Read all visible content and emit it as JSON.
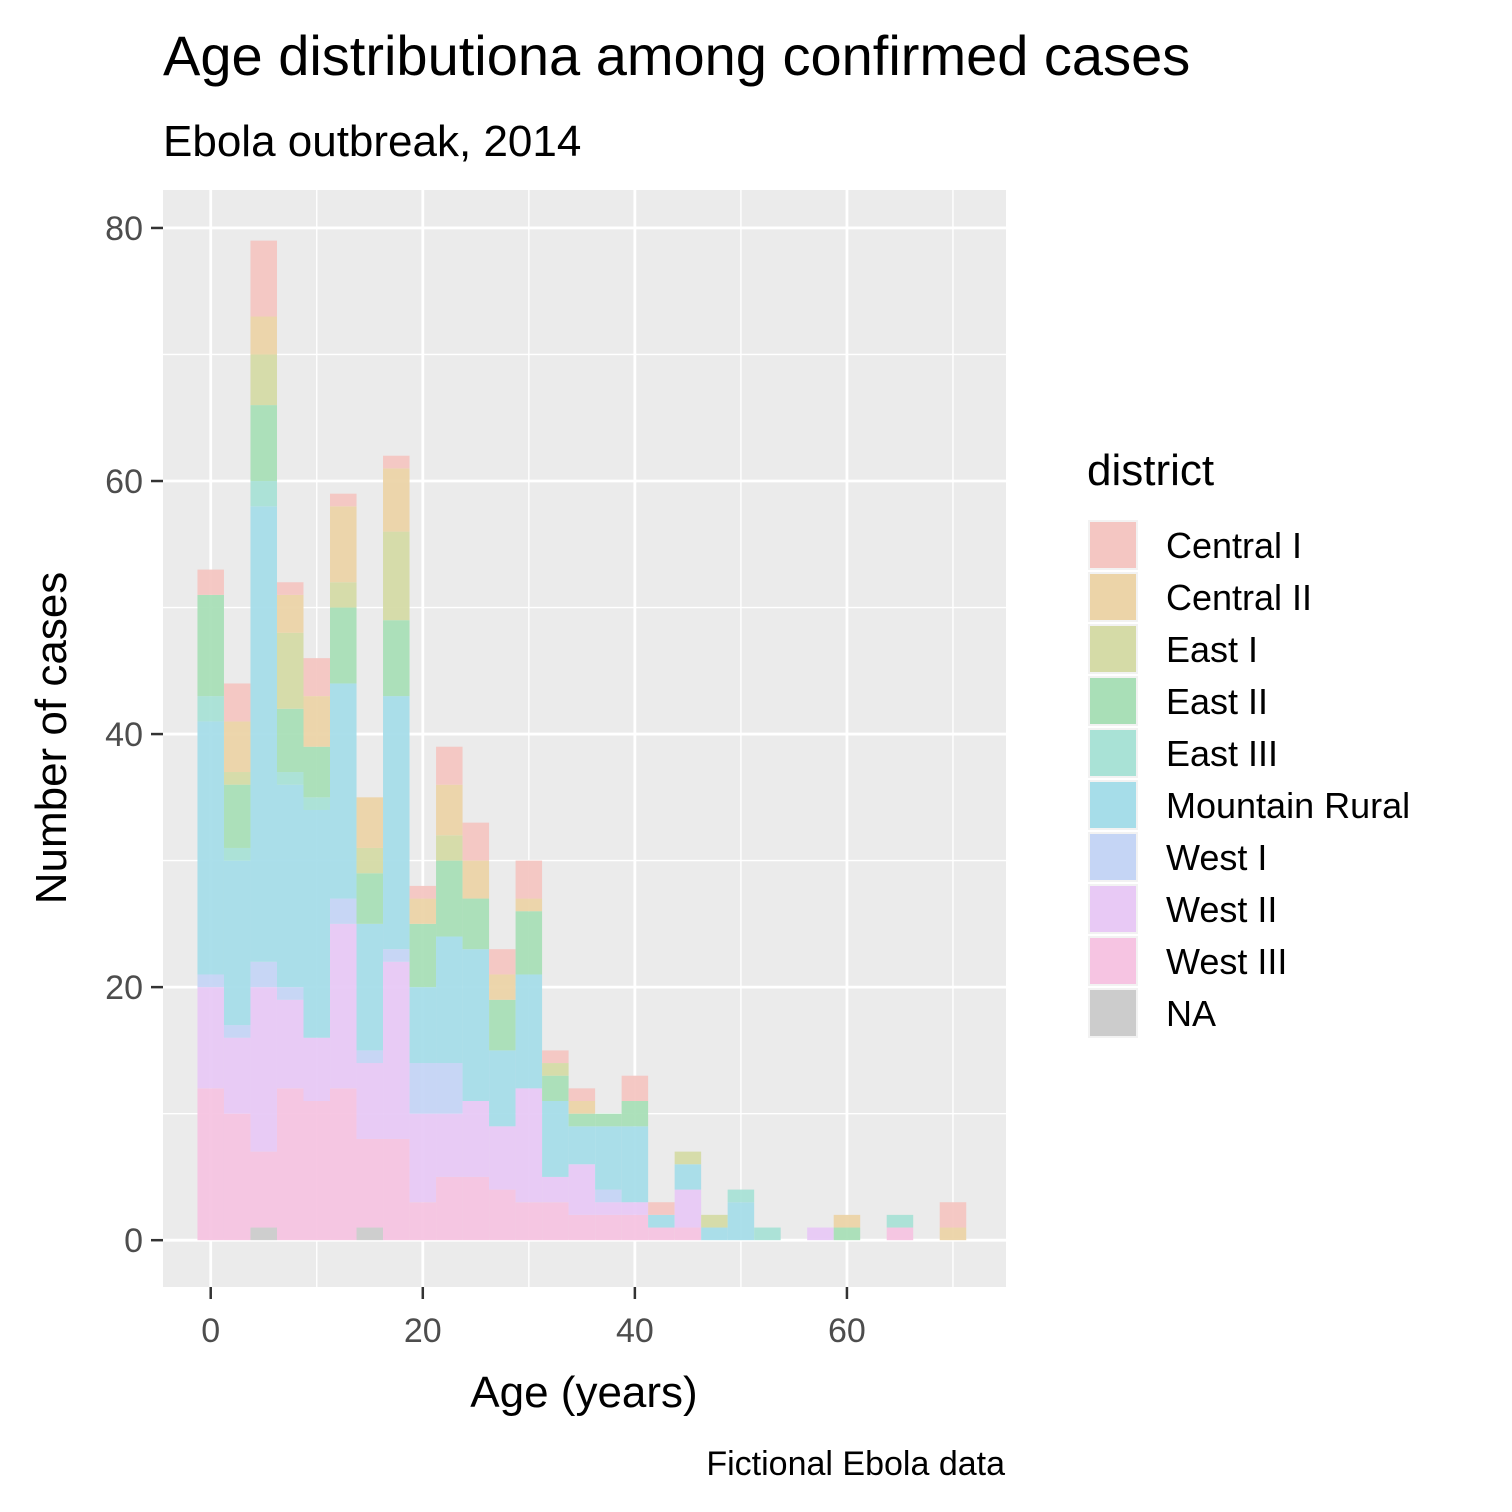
{
  "chart_data": {
    "type": "bar",
    "stacked": true,
    "title": "Age distributiona among confirmed cases",
    "subtitle": "Ebola outbreak, 2014",
    "xlabel": "Age (years)",
    "ylabel": "Number of cases",
    "caption": "Fictional Ebola data",
    "xlim": [
      -4.5,
      75
    ],
    "ylim": [
      -3.7,
      83
    ],
    "x_ticks": [
      0,
      20,
      40,
      60
    ],
    "y_ticks": [
      0,
      20,
      40,
      60,
      80
    ],
    "bin_width": 2.5,
    "grid": true,
    "legend": {
      "title": "district",
      "position": "right"
    },
    "categories": [
      0,
      2.5,
      5,
      7.5,
      10,
      12.5,
      15,
      17.5,
      20,
      22.5,
      25,
      27.5,
      30,
      32.5,
      35,
      37.5,
      40,
      42.5,
      45,
      47.5,
      50,
      52.5,
      55,
      57.5,
      60,
      62.5,
      65,
      67.5,
      70
    ],
    "series": [
      {
        "name": "NA",
        "color": "#cccccc",
        "values": [
          0,
          0,
          1,
          0,
          0,
          0,
          1,
          0,
          0,
          0,
          0,
          0,
          0,
          0,
          0,
          0,
          0,
          0,
          0,
          0,
          0,
          0,
          0,
          0,
          0,
          0,
          0,
          0,
          0
        ]
      },
      {
        "name": "West III",
        "color": "#f6c4e2",
        "values": [
          12,
          10,
          6,
          12,
          11,
          12,
          7,
          8,
          3,
          5,
          5,
          4,
          3,
          3,
          2,
          2,
          2,
          1,
          1,
          0,
          0,
          0,
          0,
          0,
          0,
          0,
          1,
          0,
          0
        ]
      },
      {
        "name": "West II",
        "color": "#e8c9f5",
        "values": [
          8,
          6,
          13,
          7,
          5,
          13,
          6,
          14,
          7,
          5,
          6,
          5,
          9,
          2,
          4,
          1,
          1,
          0,
          3,
          0,
          0,
          0,
          0,
          1,
          0,
          0,
          0,
          0,
          0
        ]
      },
      {
        "name": "West I",
        "color": "#c5d5f5",
        "values": [
          1,
          1,
          2,
          1,
          0,
          2,
          1,
          1,
          4,
          4,
          0,
          0,
          0,
          0,
          0,
          1,
          0,
          0,
          0,
          0,
          0,
          0,
          0,
          0,
          0,
          0,
          0,
          0,
          0
        ]
      },
      {
        "name": "Mountain Rural",
        "color": "#a6dde9",
        "values": [
          20,
          13,
          36,
          16,
          18,
          17,
          10,
          20,
          6,
          10,
          12,
          6,
          9,
          6,
          3,
          5,
          6,
          1,
          2,
          1,
          3,
          0,
          0,
          0,
          0,
          0,
          0,
          0,
          0
        ]
      },
      {
        "name": "East III",
        "color": "#a9e2d6",
        "values": [
          2,
          1,
          2,
          1,
          1,
          0,
          0,
          0,
          0,
          0,
          0,
          0,
          0,
          0,
          0,
          0,
          0,
          0,
          0,
          0,
          1,
          1,
          0,
          0,
          0,
          0,
          1,
          0,
          0
        ]
      },
      {
        "name": "East II",
        "color": "#a9dfb7",
        "values": [
          8,
          5,
          6,
          5,
          4,
          6,
          4,
          6,
          5,
          6,
          4,
          4,
          5,
          2,
          1,
          1,
          2,
          0,
          0,
          0,
          0,
          0,
          0,
          0,
          1,
          0,
          0,
          0,
          0
        ]
      },
      {
        "name": "East I",
        "color": "#d5dba7",
        "values": [
          0,
          1,
          4,
          6,
          0,
          2,
          2,
          7,
          0,
          2,
          0,
          0,
          0,
          1,
          0,
          0,
          0,
          0,
          1,
          1,
          0,
          0,
          0,
          0,
          0,
          0,
          0,
          0,
          0
        ]
      },
      {
        "name": "Central II",
        "color": "#ecd4a8",
        "values": [
          0,
          4,
          3,
          3,
          4,
          6,
          4,
          5,
          2,
          4,
          3,
          2,
          1,
          0,
          1,
          0,
          0,
          0,
          0,
          0,
          0,
          0,
          0,
          0,
          1,
          0,
          0,
          0,
          1
        ]
      },
      {
        "name": "Central I",
        "color": "#f4c6c2",
        "values": [
          2,
          3,
          6,
          1,
          3,
          1,
          0,
          1,
          1,
          3,
          3,
          2,
          3,
          1,
          1,
          0,
          2,
          1,
          0,
          0,
          0,
          0,
          0,
          0,
          0,
          0,
          0,
          0,
          2
        ]
      }
    ]
  }
}
